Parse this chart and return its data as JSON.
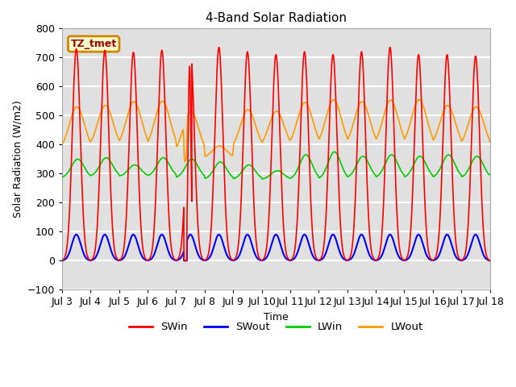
{
  "title": "4-Band Solar Radiation",
  "ylabel": "Solar Radiation (W/m2)",
  "xlabel": "Time",
  "xlim_days": [
    3,
    18
  ],
  "ylim": [
    -100,
    800
  ],
  "yticks": [
    -100,
    0,
    100,
    200,
    300,
    400,
    500,
    600,
    700,
    800
  ],
  "xtick_labels": [
    "Jul 3",
    "Jul 4",
    "Jul 5",
    "Jul 6",
    "Jul 7",
    "Jul 8",
    "Jul 9",
    "Jul 10",
    "Jul 11",
    "Jul 12",
    "Jul 13",
    "Jul 14",
    "Jul 15",
    "Jul 16",
    "Jul 17",
    "Jul 18"
  ],
  "xtick_positions": [
    3,
    4,
    5,
    6,
    7,
    8,
    9,
    10,
    11,
    12,
    13,
    14,
    15,
    16,
    17,
    18
  ],
  "background_color": "#ffffff",
  "plot_bg_color": "#e0e0e0",
  "grid_color": "#ffffff",
  "annotation_label": "TZ_tmet",
  "annotation_bg": "#ffffcc",
  "annotation_border": "#cc8800",
  "colors": {
    "SWin": "#ff0000",
    "SWout": "#0000ff",
    "LWin": "#00cc00",
    "LWout": "#ff9900"
  },
  "legend_entries": [
    "SWin",
    "SWout",
    "LWin",
    "LWout"
  ]
}
